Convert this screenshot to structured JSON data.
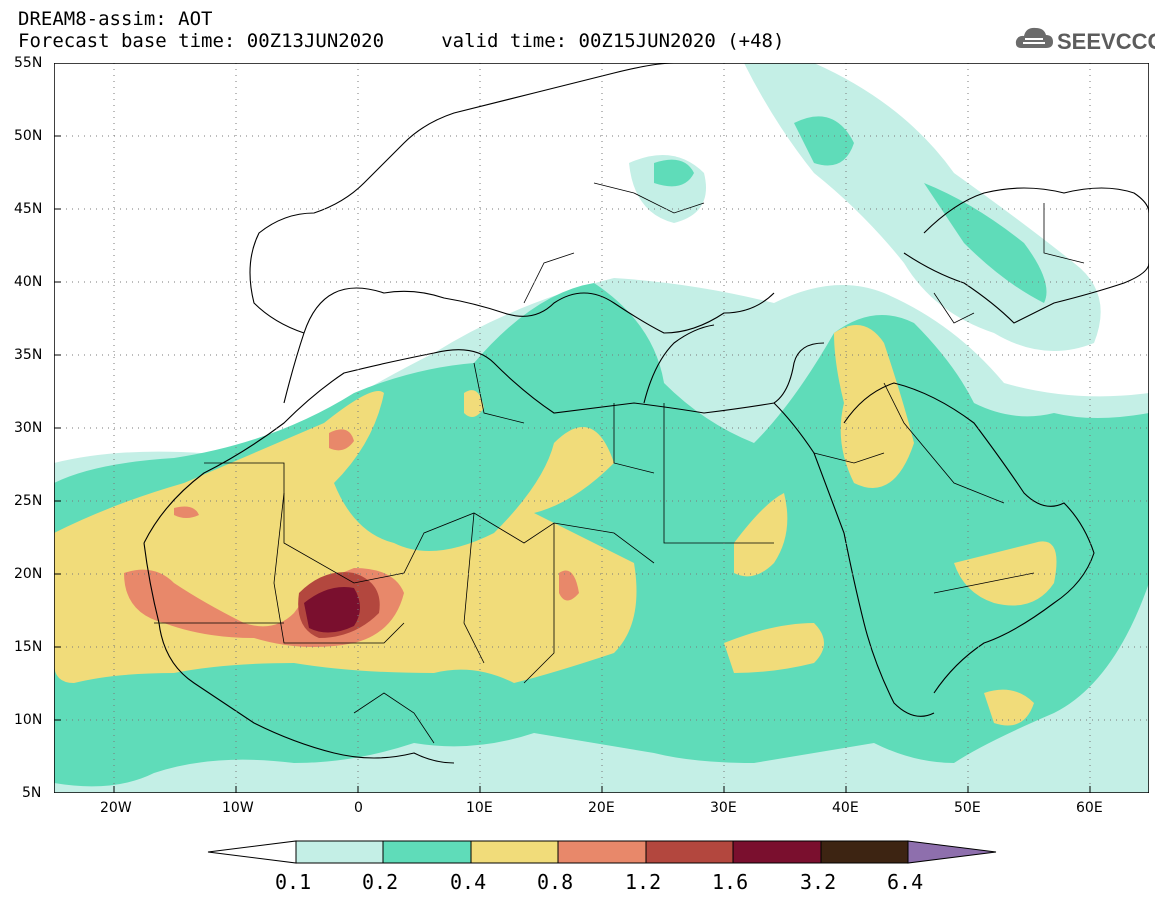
{
  "header": {
    "title": "DREAM8-assim: AOT",
    "subtitle": "Forecast base time: 00Z13JUN2020     valid time: 00Z15JUN2020 (+48)"
  },
  "logo": {
    "text": "SEEVCCC",
    "icon": "cloud-icon"
  },
  "axes": {
    "lat_labels": [
      "55N",
      "50N",
      "45N",
      "40N",
      "35N",
      "30N",
      "25N",
      "20N",
      "15N",
      "10N",
      "5N"
    ],
    "lon_labels": [
      "20W",
      "10W",
      "0",
      "10E",
      "20E",
      "30E",
      "40E",
      "50E",
      "60E"
    ],
    "lat_range": [
      5,
      55
    ],
    "lon_range": [
      -25,
      65
    ]
  },
  "colorbar": {
    "labels": [
      "0.1",
      "0.2",
      "0.4",
      "0.8",
      "1.2",
      "1.6",
      "3.2",
      "6.4"
    ],
    "colors": [
      "#c4efe6",
      "#5fdcb9",
      "#f1dc7a",
      "#e8886a",
      "#b3473e",
      "#7a0f2e",
      "#3d2412",
      "#8e6fad"
    ]
  },
  "legend_colors": {
    "c1": "#c4efe6",
    "c2": "#5fdcb9",
    "c3": "#f1dc7a",
    "c4": "#e8886a",
    "c5": "#b3473e",
    "c6": "#7a0f2e"
  }
}
